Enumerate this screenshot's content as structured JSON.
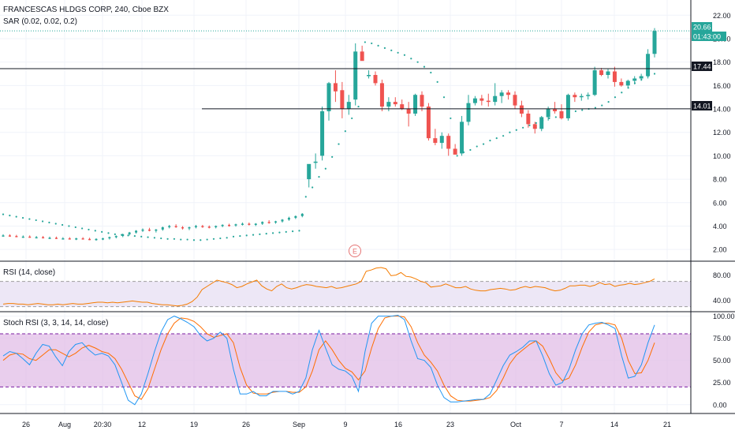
{
  "colors": {
    "up": "#26a69a",
    "down": "#ef5350",
    "sar": "#26a69a",
    "rsi_line": "#f57c00",
    "rsi_band": "#ede7f6",
    "stoch_band": "#e1bee7",
    "stoch_k": "#2196f3",
    "stoch_d": "#ff6d00",
    "grid": "#f0f3fa",
    "axis_text": "#131722",
    "price_line": "#26a69a",
    "level_line": "#131722",
    "earnings": "#e57373"
  },
  "header": {
    "symbol_line": "FRANCESCAS HLDGS CORP, 240, Cboe BZX",
    "sar_label": "SAR (0.02, 0.02, 0.2)"
  },
  "labels": {
    "last_price": "20.66",
    "countdown": "01:43:00",
    "level_high": "17.44",
    "level_low": "14.01",
    "earnings": "E"
  },
  "chart_data": [
    {
      "type": "candlestick",
      "title": "FRANCESCAS HLDGS CORP, 240, Cboe BZX",
      "y_ticks": [
        "22.00",
        "20.00",
        "18.00",
        "16.00",
        "14.00",
        "12.00",
        "10.00",
        "8.00",
        "6.00",
        "4.00",
        "2.00"
      ],
      "y_tick_values": [
        22,
        20,
        18,
        16,
        14,
        12,
        10,
        8,
        6,
        4,
        2
      ],
      "ylim": [
        1,
        23.3
      ],
      "last_price": 20.66,
      "horizontal_levels": [
        17.44,
        14.01
      ],
      "candles_ohlc": [
        [
          3.2,
          3.3,
          3.1,
          3.2
        ],
        [
          3.2,
          3.3,
          3.1,
          3.15
        ],
        [
          3.15,
          3.25,
          3.05,
          3.1
        ],
        [
          3.1,
          3.2,
          3.0,
          3.1
        ],
        [
          3.1,
          3.2,
          3.0,
          3.05
        ],
        [
          3.05,
          3.15,
          2.95,
          3.05
        ],
        [
          3.05,
          3.15,
          2.95,
          3.0
        ],
        [
          3.0,
          3.1,
          2.9,
          3.0
        ],
        [
          3.0,
          3.1,
          2.9,
          2.95
        ],
        [
          2.95,
          3.05,
          2.85,
          2.95
        ],
        [
          2.95,
          3.05,
          2.85,
          2.9
        ],
        [
          2.9,
          3.0,
          2.8,
          2.95
        ],
        [
          2.95,
          3.05,
          2.85,
          2.9
        ],
        [
          2.9,
          3.0,
          2.8,
          2.85
        ],
        [
          2.85,
          2.95,
          2.75,
          2.9
        ],
        [
          2.9,
          3.0,
          2.8,
          2.95
        ],
        [
          2.95,
          3.1,
          2.85,
          3.05
        ],
        [
          3.05,
          3.2,
          2.95,
          3.15
        ],
        [
          3.15,
          3.35,
          3.05,
          3.3
        ],
        [
          3.3,
          3.5,
          3.2,
          3.45
        ],
        [
          3.45,
          3.65,
          3.35,
          3.6
        ],
        [
          3.6,
          3.8,
          3.5,
          3.7
        ],
        [
          3.7,
          3.85,
          3.55,
          3.6
        ],
        [
          3.6,
          3.75,
          3.45,
          3.7
        ],
        [
          3.7,
          3.95,
          3.6,
          3.9
        ],
        [
          3.9,
          4.1,
          3.8,
          4.0
        ],
        [
          4.0,
          4.15,
          3.85,
          3.9
        ],
        [
          3.9,
          4.0,
          3.7,
          3.8
        ],
        [
          3.8,
          3.95,
          3.65,
          3.9
        ],
        [
          3.9,
          4.1,
          3.8,
          4.0
        ],
        [
          4.0,
          4.1,
          3.85,
          3.95
        ],
        [
          3.95,
          4.05,
          3.8,
          3.9
        ],
        [
          3.9,
          4.05,
          3.8,
          4.0
        ],
        [
          4.0,
          4.15,
          3.9,
          4.1
        ],
        [
          4.1,
          4.2,
          3.95,
          4.05
        ],
        [
          4.05,
          4.2,
          3.95,
          4.15
        ],
        [
          4.15,
          4.3,
          4.05,
          4.2
        ],
        [
          4.2,
          4.3,
          4.05,
          4.1
        ],
        [
          4.1,
          4.25,
          4.0,
          4.2
        ],
        [
          4.2,
          4.4,
          4.1,
          4.35
        ],
        [
          4.35,
          4.5,
          4.2,
          4.3
        ],
        [
          4.3,
          4.45,
          4.2,
          4.4
        ],
        [
          4.4,
          4.6,
          4.3,
          4.55
        ],
        [
          4.55,
          4.8,
          4.45,
          4.7
        ],
        [
          4.7,
          4.9,
          4.6,
          4.85
        ],
        [
          4.85,
          5.1,
          4.75,
          5.05
        ],
        [
          8.0,
          8.5,
          7.3,
          9.3
        ],
        [
          9.4,
          10.2,
          8.9,
          9.5
        ],
        [
          10.0,
          14.2,
          9.6,
          13.8
        ],
        [
          13.8,
          16.3,
          13.0,
          16.2
        ],
        [
          16.2,
          17.3,
          14.6,
          15.5
        ],
        [
          15.6,
          16.3,
          13.2,
          14.0
        ],
        [
          14.0,
          15.2,
          13.5,
          14.6
        ],
        [
          14.8,
          19.6,
          14.3,
          18.9
        ],
        [
          18.9,
          19.4,
          18.4,
          18.1
        ],
        [
          16.8,
          17.3,
          16.6,
          16.9
        ],
        [
          16.9,
          17.2,
          16.0,
          16.2
        ],
        [
          16.2,
          16.5,
          13.8,
          14.2
        ],
        [
          14.2,
          15.0,
          13.8,
          14.6
        ],
        [
          14.6,
          15.0,
          14.2,
          14.4
        ],
        [
          14.4,
          14.8,
          13.9,
          14.0
        ],
        [
          14.0,
          14.6,
          12.5,
          13.6
        ],
        [
          13.6,
          15.3,
          13.4,
          15.2
        ],
        [
          15.2,
          15.5,
          13.8,
          14.2
        ],
        [
          14.2,
          14.5,
          11.3,
          11.5
        ],
        [
          11.5,
          12.3,
          10.9,
          11.1
        ],
        [
          11.1,
          12.0,
          10.6,
          11.7
        ],
        [
          11.7,
          11.9,
          10.0,
          10.6
        ],
        [
          10.6,
          11.0,
          10.2,
          10.1
        ],
        [
          10.2,
          13.4,
          10.0,
          12.9
        ],
        [
          12.9,
          15.2,
          12.6,
          14.5
        ],
        [
          14.5,
          15.1,
          14.3,
          14.9
        ],
        [
          14.9,
          15.2,
          14.3,
          14.7
        ],
        [
          14.7,
          15.3,
          14.2,
          14.6
        ],
        [
          14.6,
          16.2,
          14.3,
          15.1
        ],
        [
          15.1,
          15.6,
          14.5,
          15.4
        ],
        [
          15.4,
          15.6,
          14.8,
          15.2
        ],
        [
          15.2,
          15.5,
          14.0,
          14.3
        ],
        [
          14.3,
          14.7,
          13.3,
          13.6
        ],
        [
          13.6,
          13.9,
          12.4,
          12.7
        ],
        [
          12.7,
          12.9,
          11.9,
          12.3
        ],
        [
          12.3,
          13.4,
          12.1,
          13.3
        ],
        [
          13.3,
          14.2,
          13.0,
          14.0
        ],
        [
          14.0,
          14.6,
          13.6,
          13.8
        ],
        [
          13.8,
          14.4,
          13.1,
          13.2
        ],
        [
          13.2,
          15.3,
          13.0,
          15.2
        ],
        [
          15.2,
          15.4,
          14.6,
          15.0
        ],
        [
          15.0,
          15.3,
          14.7,
          15.1
        ],
        [
          15.1,
          15.4,
          14.8,
          15.2
        ],
        [
          15.2,
          17.6,
          15.1,
          17.3
        ],
        [
          17.3,
          17.5,
          16.8,
          16.9
        ],
        [
          16.9,
          17.4,
          16.6,
          17.2
        ],
        [
          17.2,
          17.6,
          15.9,
          16.3
        ],
        [
          16.3,
          16.6,
          15.9,
          16.0
        ],
        [
          16.0,
          16.5,
          15.8,
          16.4
        ],
        [
          16.4,
          16.8,
          16.1,
          16.6
        ],
        [
          16.6,
          17.0,
          16.4,
          16.8
        ],
        [
          16.8,
          19.1,
          16.6,
          18.7
        ],
        [
          18.7,
          20.9,
          18.4,
          20.66
        ]
      ],
      "sar": [
        5.0,
        4.9,
        4.8,
        4.7,
        4.6,
        4.5,
        4.4,
        4.3,
        4.2,
        4.1,
        4.0,
        3.9,
        3.8,
        3.7,
        3.6,
        3.5,
        3.4,
        3.3,
        3.25,
        3.2,
        3.15,
        3.1,
        3.05,
        3.0,
        2.95,
        2.9,
        2.9,
        2.85,
        2.85,
        2.8,
        2.8,
        2.85,
        2.9,
        2.95,
        3.0,
        3.1,
        3.15,
        3.2,
        3.25,
        3.3,
        3.35,
        3.4,
        3.45,
        3.5,
        3.55,
        3.6,
        6.5,
        7.3,
        8.2,
        8.9,
        9.9,
        11.0,
        12.1,
        13.2,
        14.2,
        19.7,
        19.6,
        19.4,
        19.2,
        19.0,
        18.8,
        18.6,
        18.3,
        18.0,
        17.6,
        17.1,
        16.3,
        15.0,
        13.2,
        10.0,
        10.3,
        10.5,
        10.8,
        11.0,
        11.3,
        11.5,
        11.7,
        12.0,
        12.2,
        12.4,
        12.6,
        12.8,
        13.0,
        13.2,
        13.3,
        13.5,
        13.6,
        13.8,
        13.9,
        14.0,
        14.1,
        14.3,
        14.6,
        15.0,
        15.4,
        15.8,
        16.2,
        16.5,
        16.8,
        17.0
      ],
      "x_tick_labels": [
        "26",
        "Aug",
        "20:30",
        "12",
        "19",
        "26",
        "Sep",
        "9",
        "16",
        "23",
        "Oct",
        "7",
        "14",
        "21"
      ],
      "earnings_marker": "E"
    },
    {
      "type": "line",
      "title": "RSI (14, close)",
      "y_ticks": [
        "80.00",
        "40.00"
      ],
      "y_tick_values": [
        80,
        40
      ],
      "ylim": [
        22,
        102
      ],
      "band": [
        70,
        30
      ],
      "values": [
        34,
        35,
        35,
        34,
        34,
        33,
        34,
        35,
        34,
        33,
        33,
        34,
        33,
        34,
        35,
        34,
        34,
        35,
        36,
        37,
        37,
        36,
        37,
        36,
        37,
        38,
        39,
        38,
        37,
        37,
        35,
        34,
        33,
        33,
        32,
        31,
        32,
        34,
        38,
        45,
        57,
        62,
        67,
        72,
        70,
        68,
        65,
        60,
        62,
        66,
        69,
        72,
        63,
        58,
        55,
        62,
        66,
        60,
        58,
        60,
        63,
        65,
        64,
        62,
        61,
        60,
        62,
        59,
        60,
        62,
        64,
        66,
        70,
        86,
        88,
        91,
        92,
        90,
        79,
        80,
        84,
        78,
        77,
        74,
        70,
        68,
        61,
        62,
        63,
        66,
        63,
        60,
        60,
        62,
        58,
        56,
        55,
        55,
        57,
        58,
        59,
        58,
        56,
        57,
        60,
        62,
        60,
        62,
        61,
        60,
        57,
        55,
        56,
        59,
        63,
        63,
        64,
        64,
        62,
        64,
        68,
        65,
        66,
        62,
        64,
        65,
        67,
        65,
        66,
        68,
        70,
        74
      ]
    },
    {
      "type": "line",
      "title": "Stoch RSI (3, 3, 14, 14, close)",
      "y_ticks": [
        "100.00",
        "75.00",
        "50.00",
        "25.00",
        "0.00"
      ],
      "y_tick_values": [
        100,
        75,
        50,
        25,
        0
      ],
      "ylim": [
        -10,
        105
      ],
      "band": [
        80,
        20
      ],
      "series": [
        {
          "name": "K",
          "values": [
            55,
            60,
            58,
            52,
            45,
            58,
            68,
            66,
            54,
            44,
            60,
            68,
            70,
            62,
            56,
            58,
            55,
            45,
            25,
            5,
            0,
            12,
            35,
            60,
            82,
            96,
            100,
            97,
            93,
            88,
            78,
            72,
            75,
            82,
            75,
            40,
            12,
            12,
            15,
            10,
            10,
            15,
            15,
            15,
            12,
            15,
            30,
            62,
            84,
            64,
            45,
            40,
            38,
            32,
            15,
            60,
            92,
            100,
            100,
            100,
            101,
            96,
            72,
            52,
            50,
            42,
            22,
            8,
            3,
            3,
            4,
            5,
            6,
            6,
            12,
            28,
            44,
            56,
            60,
            65,
            72,
            72,
            55,
            35,
            22,
            25,
            40,
            62,
            80,
            90,
            92,
            93,
            90,
            86,
            55,
            30,
            32,
            45,
            70,
            90
          ]
        },
        {
          "name": "D",
          "values": [
            50,
            56,
            58,
            57,
            52,
            50,
            56,
            62,
            62,
            58,
            54,
            58,
            64,
            67,
            64,
            60,
            58,
            52,
            40,
            25,
            10,
            6,
            18,
            40,
            62,
            80,
            92,
            98,
            97,
            94,
            88,
            80,
            76,
            78,
            80,
            70,
            42,
            22,
            13,
            12,
            12,
            14,
            15,
            15,
            14,
            14,
            20,
            38,
            62,
            72,
            62,
            50,
            41,
            37,
            28,
            38,
            64,
            86,
            98,
            100,
            100,
            99,
            88,
            70,
            56,
            48,
            38,
            22,
            10,
            5,
            4,
            4,
            5,
            6,
            8,
            16,
            30,
            46,
            56,
            62,
            68,
            72,
            66,
            52,
            36,
            27,
            30,
            45,
            65,
            82,
            90,
            92,
            92,
            90,
            75,
            50,
            35,
            36,
            50,
            70
          ]
        }
      ]
    }
  ]
}
